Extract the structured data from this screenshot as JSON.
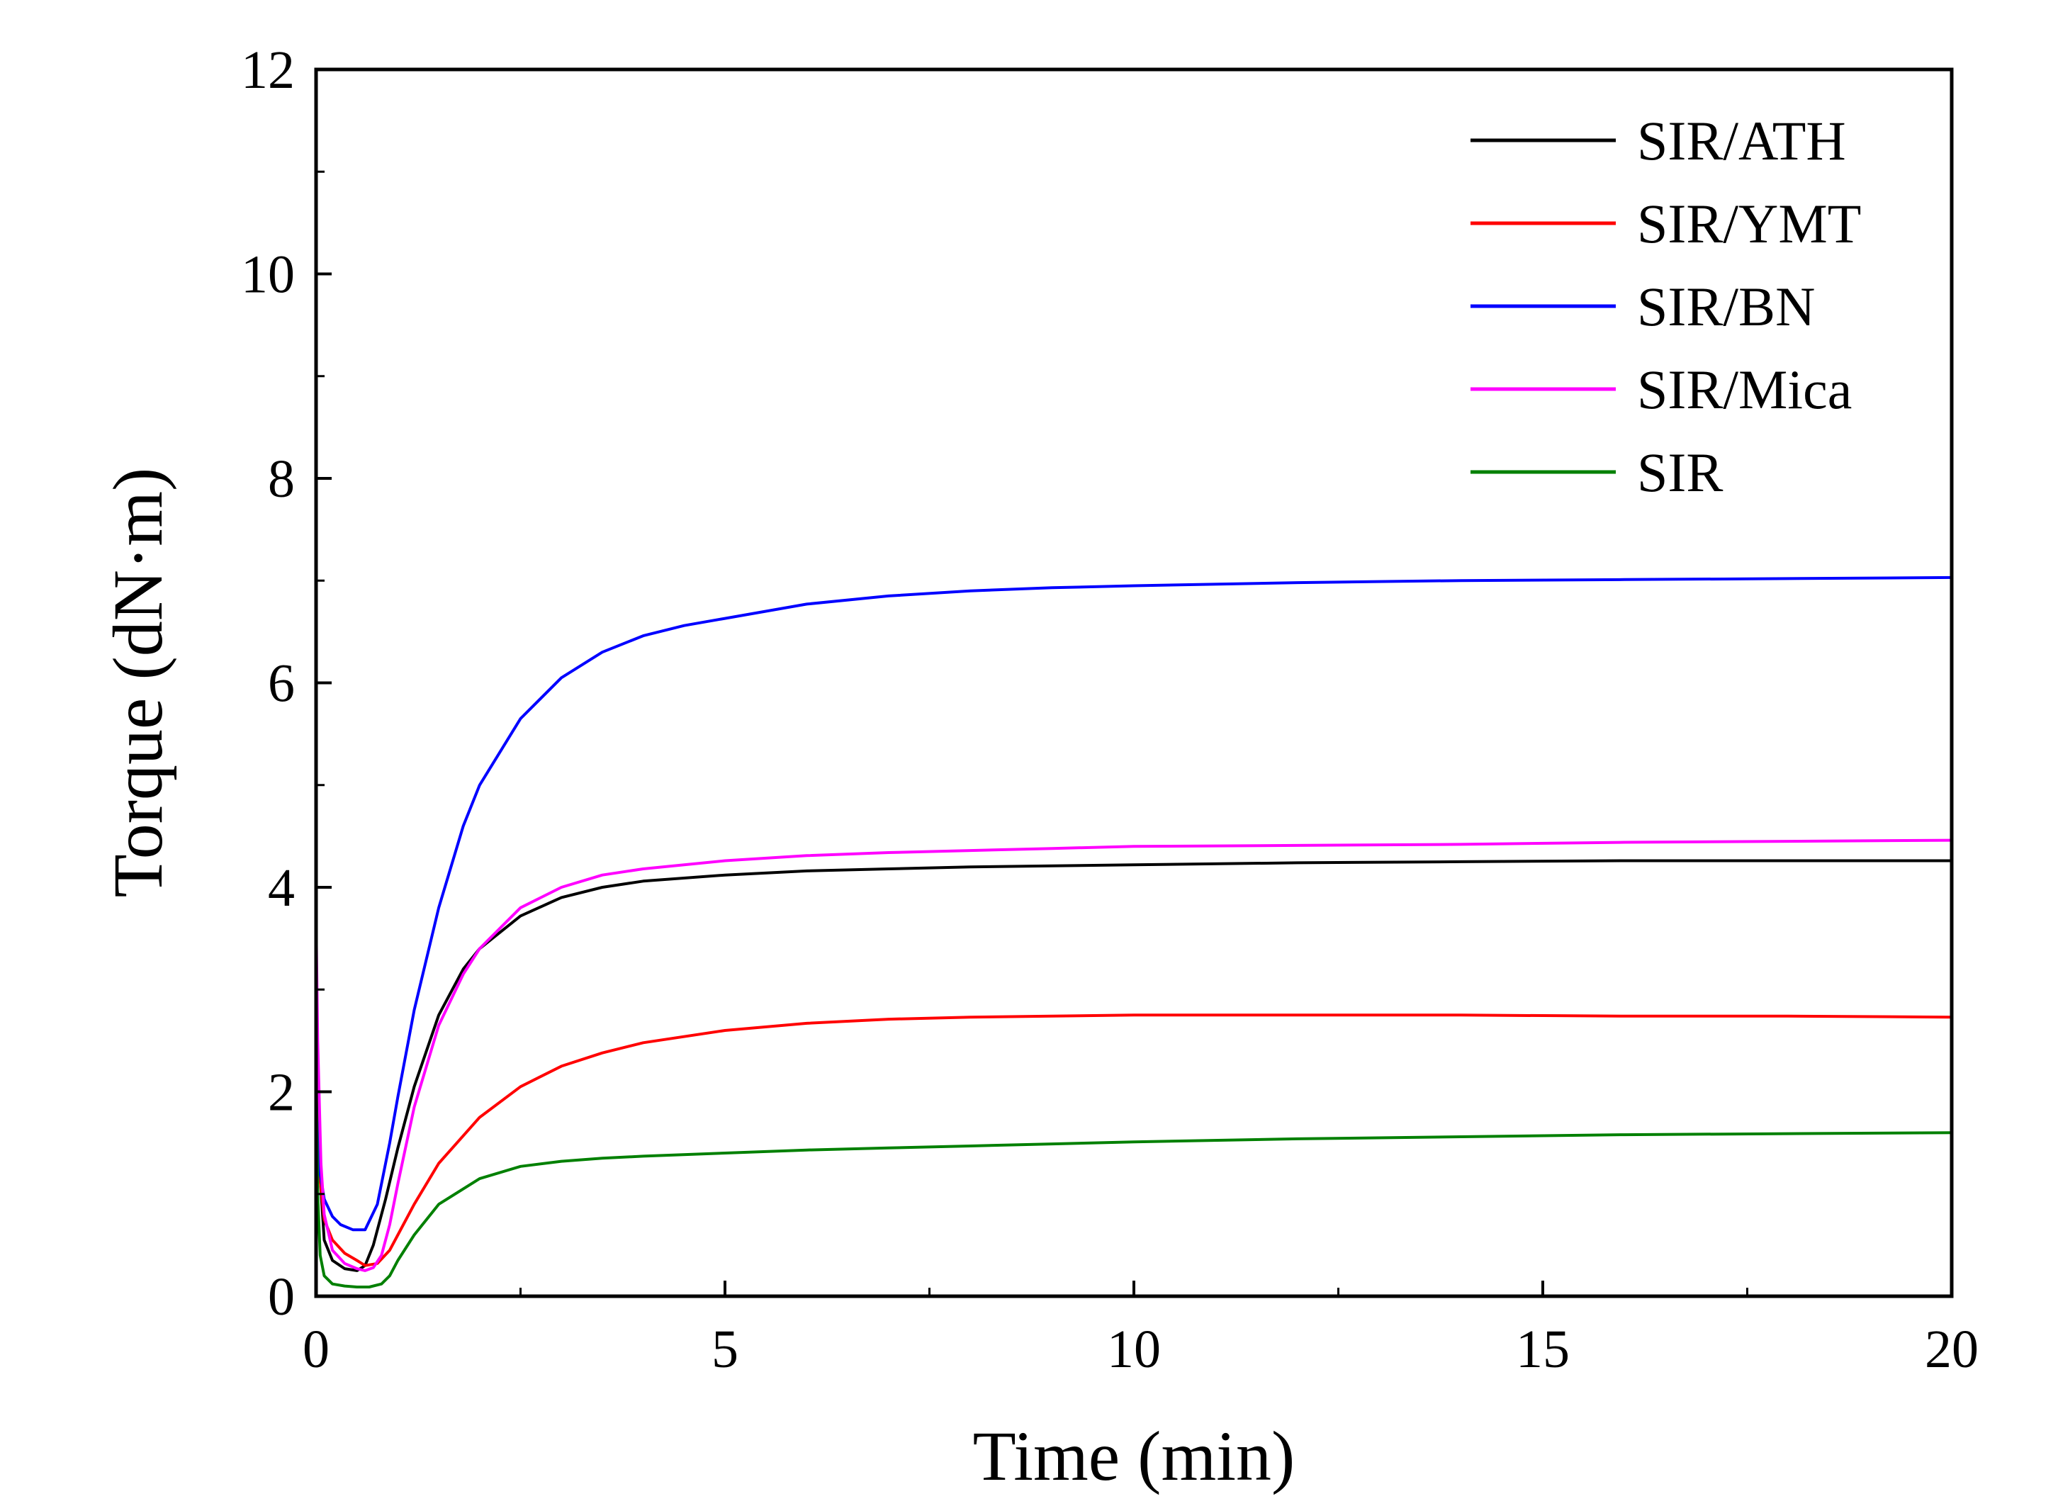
{
  "chart_data": {
    "type": "line",
    "title": "",
    "xlabel": "Time (min)",
    "ylabel": "Torque (dN·m)",
    "xlim": [
      0,
      20
    ],
    "ylim": [
      0,
      12
    ],
    "xticks": [
      0,
      5,
      10,
      15,
      20
    ],
    "yticks": [
      0,
      2,
      4,
      6,
      8,
      10,
      12
    ],
    "x_tick_labels": [
      "0",
      "5",
      "10",
      "15",
      "20"
    ],
    "y_tick_labels": [
      "0",
      "2",
      "4",
      "6",
      "8",
      "10",
      "12"
    ],
    "x_minor_step": 2.5,
    "y_minor_step": 1,
    "grid": false,
    "legend_position": "top-right",
    "series": [
      {
        "name": "SIR/ATH",
        "color": "#000000",
        "x": [
          0,
          0.03,
          0.1,
          0.2,
          0.35,
          0.5,
          0.6,
          0.7,
          0.85,
          1.0,
          1.2,
          1.5,
          1.8,
          2.0,
          2.5,
          3.0,
          3.5,
          4.0,
          5.0,
          6.0,
          7.0,
          8.0,
          9.0,
          10.0,
          12.0,
          14.0,
          16.0,
          18.0,
          20.0
        ],
        "y": [
          2.2,
          1.4,
          0.55,
          0.35,
          0.27,
          0.25,
          0.3,
          0.5,
          0.95,
          1.45,
          2.05,
          2.75,
          3.2,
          3.4,
          3.72,
          3.9,
          4.0,
          4.06,
          4.12,
          4.16,
          4.18,
          4.2,
          4.21,
          4.22,
          4.24,
          4.25,
          4.26,
          4.26,
          4.26
        ]
      },
      {
        "name": "SIR/YMT",
        "color": "#ff0000",
        "x": [
          0,
          0.03,
          0.1,
          0.2,
          0.35,
          0.5,
          0.6,
          0.75,
          0.9,
          1.0,
          1.2,
          1.5,
          2.0,
          2.5,
          3.0,
          3.5,
          4.0,
          5.0,
          6.0,
          7.0,
          8.0,
          9.0,
          10.0,
          12.0,
          14.0,
          16.0,
          18.0,
          20.0
        ],
        "y": [
          2.2,
          1.3,
          0.75,
          0.55,
          0.42,
          0.35,
          0.3,
          0.32,
          0.45,
          0.6,
          0.9,
          1.3,
          1.75,
          2.05,
          2.25,
          2.38,
          2.48,
          2.6,
          2.67,
          2.71,
          2.73,
          2.74,
          2.75,
          2.75,
          2.75,
          2.74,
          2.74,
          2.73
        ]
      },
      {
        "name": "SIR/BN",
        "color": "#0000ff",
        "x": [
          0,
          0.03,
          0.1,
          0.2,
          0.3,
          0.45,
          0.6,
          0.75,
          0.9,
          1.0,
          1.2,
          1.5,
          1.8,
          2.0,
          2.5,
          3.0,
          3.5,
          4.0,
          4.5,
          5.0,
          6.0,
          7.0,
          8.0,
          9.0,
          10.0,
          12.0,
          14.0,
          16.0,
          18.0,
          20.0
        ],
        "y": [
          2.0,
          1.3,
          0.95,
          0.78,
          0.7,
          0.65,
          0.65,
          0.9,
          1.5,
          1.95,
          2.8,
          3.8,
          4.6,
          5.0,
          5.65,
          6.05,
          6.3,
          6.46,
          6.56,
          6.63,
          6.77,
          6.85,
          6.9,
          6.93,
          6.95,
          6.98,
          7.0,
          7.01,
          7.02,
          7.03
        ]
      },
      {
        "name": "SIR/Mica",
        "color": "#ff00ff",
        "x": [
          0,
          0.02,
          0.06,
          0.1,
          0.2,
          0.35,
          0.5,
          0.6,
          0.7,
          0.8,
          0.9,
          1.0,
          1.2,
          1.5,
          1.8,
          2.0,
          2.5,
          3.0,
          3.5,
          4.0,
          5.0,
          6.0,
          7.0,
          8.0,
          9.0,
          10.0,
          12.0,
          14.0,
          16.0,
          18.0,
          20.0
        ],
        "y": [
          3.7,
          2.5,
          1.3,
          0.8,
          0.45,
          0.32,
          0.27,
          0.25,
          0.28,
          0.4,
          0.7,
          1.1,
          1.85,
          2.65,
          3.15,
          3.4,
          3.8,
          4.0,
          4.12,
          4.18,
          4.26,
          4.31,
          4.34,
          4.36,
          4.38,
          4.4,
          4.41,
          4.42,
          4.44,
          4.45,
          4.46
        ]
      },
      {
        "name": "SIR",
        "color": "#008000",
        "x": [
          0,
          0.02,
          0.05,
          0.1,
          0.2,
          0.35,
          0.5,
          0.65,
          0.8,
          0.9,
          1.0,
          1.2,
          1.5,
          2.0,
          2.5,
          3.0,
          3.5,
          4.0,
          5.0,
          6.0,
          7.0,
          8.0,
          9.0,
          10.0,
          12.0,
          14.0,
          16.0,
          18.0,
          20.0
        ],
        "y": [
          2.3,
          1.0,
          0.4,
          0.2,
          0.12,
          0.1,
          0.09,
          0.09,
          0.12,
          0.2,
          0.35,
          0.6,
          0.9,
          1.15,
          1.27,
          1.32,
          1.35,
          1.37,
          1.4,
          1.43,
          1.45,
          1.47,
          1.49,
          1.51,
          1.54,
          1.56,
          1.58,
          1.59,
          1.6
        ]
      }
    ]
  }
}
